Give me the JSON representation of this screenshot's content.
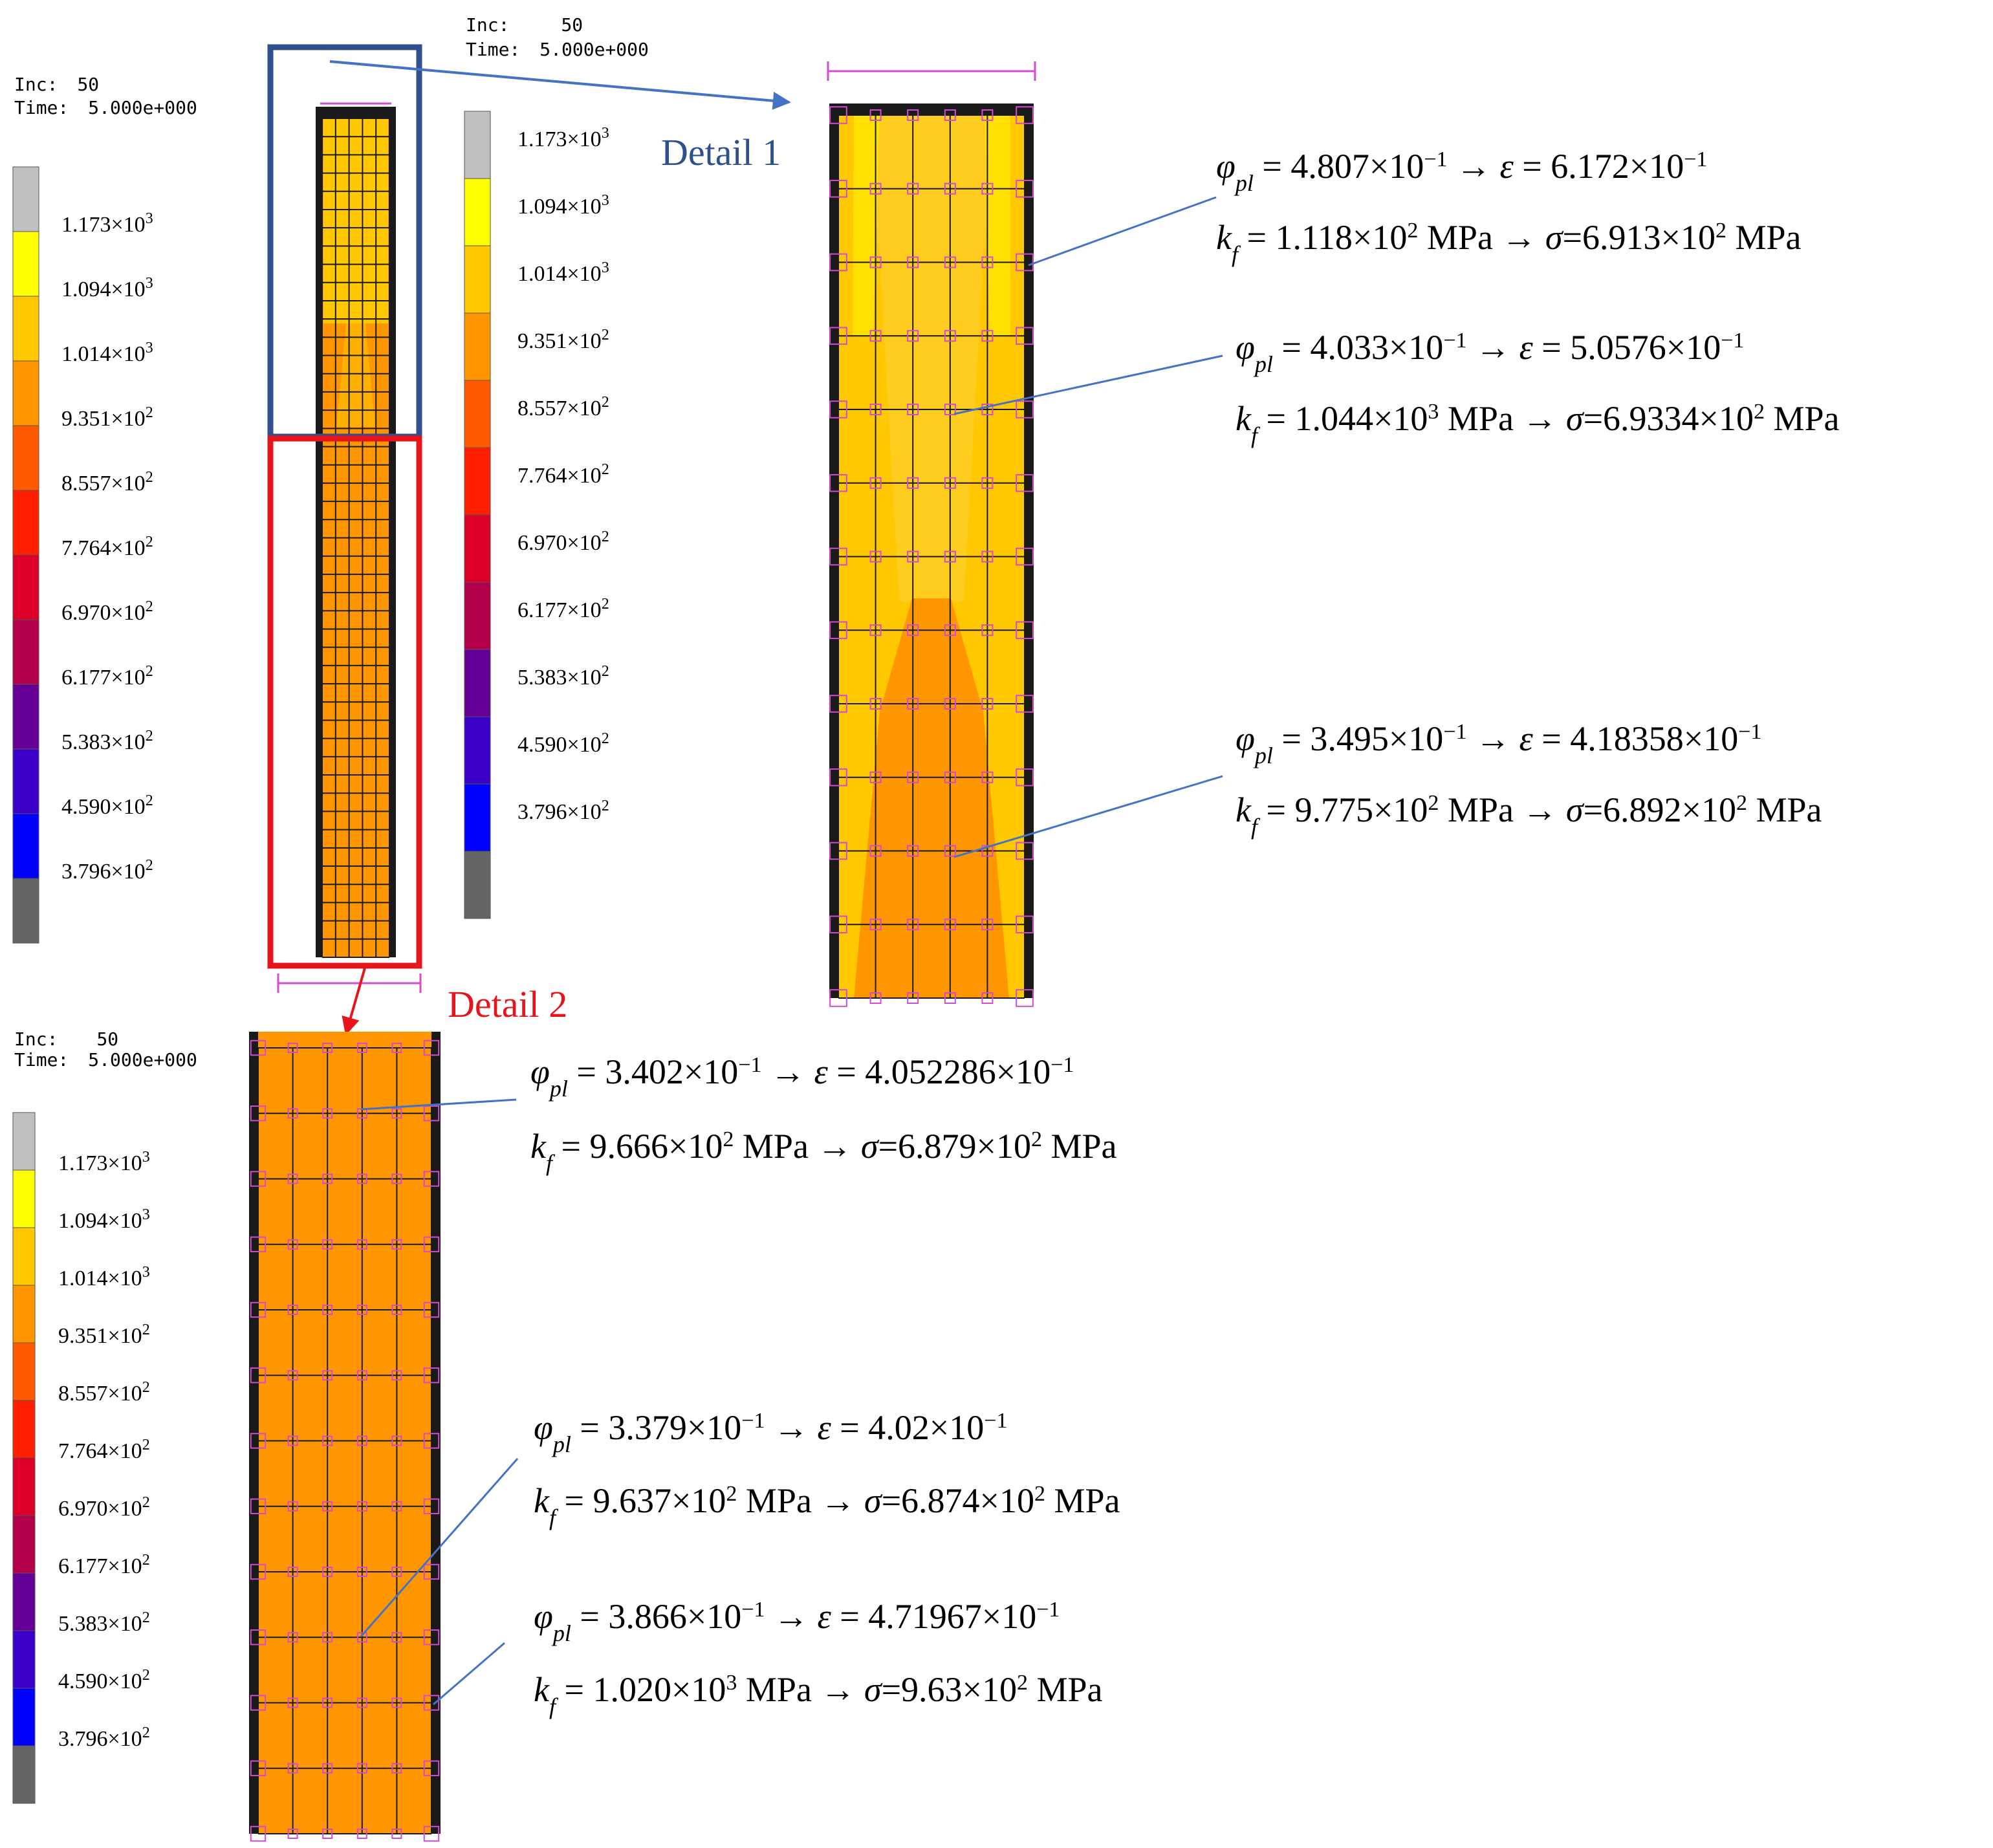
{
  "scale": {
    "labels": [
      {
        "m": "1.173",
        "e": "3"
      },
      {
        "m": "1.094",
        "e": "3"
      },
      {
        "m": "1.014",
        "e": "3"
      },
      {
        "m": "9.351",
        "e": "2"
      },
      {
        "m": "8.557",
        "e": "2"
      },
      {
        "m": "7.764",
        "e": "2"
      },
      {
        "m": "6.970",
        "e": "2"
      },
      {
        "m": "6.177",
        "e": "2"
      },
      {
        "m": "5.383",
        "e": "2"
      },
      {
        "m": "4.590",
        "e": "2"
      },
      {
        "m": "3.796",
        "e": "2"
      }
    ],
    "colors": [
      "#c0c0c0",
      "#ffff00",
      "#ffc800",
      "#ff9600",
      "#ff5a00",
      "#ff1e00",
      "#dc0028",
      "#b4004b",
      "#640096",
      "#3c00c8",
      "#0000ff",
      "#646464"
    ]
  },
  "headers": {
    "main": {
      "inc_label": "Inc:",
      "inc": "50",
      "time_label": "Time:",
      "time": "5.000e+000"
    },
    "detail1": {
      "inc_label": "Inc:",
      "inc": "50",
      "time_label": "Time:",
      "time": "5.000e+000"
    },
    "detail2": {
      "inc_label": "Inc:",
      "inc": "50",
      "time_label": "Time:",
      "time": "5.000e+000"
    }
  },
  "details": {
    "detail1": {
      "title": "Detail 1",
      "color": "#2f4f8f",
      "arrow_color": "#4472c4"
    },
    "detail2": {
      "title": "Detail 2",
      "color": "#e8141c",
      "arrow_color": "#e8141c"
    }
  },
  "annotations": [
    {
      "phi": "4.807",
      "phi_exp": "−1",
      "eps": "6.172",
      "eps_exp": "−1",
      "kf": "1.118",
      "kf_exp": "2",
      "sigma": "6.913",
      "sigma_exp": "2",
      "unit": "MPa"
    },
    {
      "phi": "4.033",
      "phi_exp": "−1",
      "eps": "5.0576",
      "eps_exp": "−1",
      "kf": "1.044",
      "kf_exp": "3",
      "sigma": "6.9334",
      "sigma_exp": "2",
      "unit": "MPa"
    },
    {
      "phi": "3.495",
      "phi_exp": "−1",
      "eps": "4.18358",
      "eps_exp": "−1",
      "kf": "9.775",
      "kf_exp": "2",
      "sigma": "6.892",
      "sigma_exp": "2",
      "unit": "MPa"
    },
    {
      "phi": "3.402",
      "phi_exp": "−1",
      "eps": "4.052286",
      "eps_exp": "−1",
      "kf": "9.666",
      "kf_exp": "2",
      "sigma": "6.879",
      "sigma_exp": "2",
      "unit": "MPa"
    },
    {
      "phi": "3.379",
      "phi_exp": "−1",
      "eps": "4.02",
      "eps_exp": "−1",
      "kf": "9.637",
      "kf_exp": "2",
      "sigma": "6.874",
      "sigma_exp": "2",
      "unit": "MPa"
    },
    {
      "phi": "3.866",
      "phi_exp": "−1",
      "eps": "4.71967",
      "eps_exp": "−1",
      "kf": "1.020",
      "kf_exp": "3",
      "sigma": "9.63",
      "sigma_exp": "2",
      "unit": "MPa"
    }
  ],
  "symbols": {
    "phi": "φ",
    "phi_sub": "pl",
    "eps": "ε",
    "kf": "k",
    "kf_sub": "f",
    "sigma": "σ",
    "times": "×10",
    "arrow": "→"
  }
}
